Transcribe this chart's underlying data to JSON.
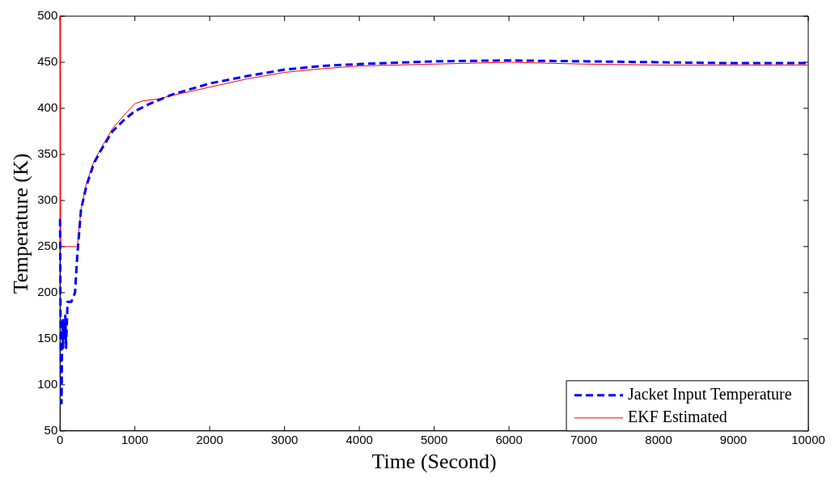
{
  "chart_data": {
    "type": "line",
    "xlabel": "Time (Second)",
    "ylabel": "Temperature (K)",
    "xlim": [
      0,
      10000
    ],
    "xticks": [
      0,
      1000,
      2000,
      3000,
      4000,
      5000,
      6000,
      7000,
      8000,
      9000,
      10000
    ],
    "ylim": [
      50,
      500
    ],
    "yticks": [
      50,
      100,
      150,
      200,
      250,
      300,
      350,
      400,
      450,
      500
    ],
    "grid": false,
    "legend": "bottom right",
    "marker": "none",
    "series": [
      {
        "name": "Jacket Input Temperature",
        "color": "#0000ff",
        "line_style": "dashed",
        "x": [
          0,
          10,
          20,
          30,
          40,
          50,
          60,
          70,
          80,
          100,
          150,
          200,
          230,
          280,
          350,
          450,
          550,
          700,
          850,
          1000,
          1200,
          1500,
          2000,
          2500,
          3000,
          3500,
          4000,
          5000,
          6000,
          7000,
          8000,
          9000,
          10000
        ],
        "values": [
          280,
          120,
          80,
          170,
          140,
          170,
          150,
          175,
          140,
          190,
          190,
          200,
          240,
          290,
          315,
          340,
          355,
          375,
          387,
          397,
          405,
          415,
          427,
          435,
          442,
          446,
          448,
          451,
          452,
          451,
          450,
          449,
          449
        ]
      },
      {
        "name": "EKF Estimated",
        "color": "#ff0000",
        "line_style": "solid",
        "x": [
          0,
          5,
          200,
          230,
          280,
          350,
          450,
          550,
          700,
          850,
          1000,
          1100,
          1300,
          1500,
          2000,
          2500,
          3000,
          3500,
          4000,
          5000,
          6000,
          7000,
          8000,
          9000,
          10000
        ],
        "values": [
          500,
          250,
          250,
          250,
          290,
          318,
          342,
          357,
          378,
          392,
          405,
          408,
          410,
          414,
          423,
          432,
          439,
          443,
          446,
          448,
          450,
          448,
          447,
          447,
          447
        ]
      }
    ]
  }
}
